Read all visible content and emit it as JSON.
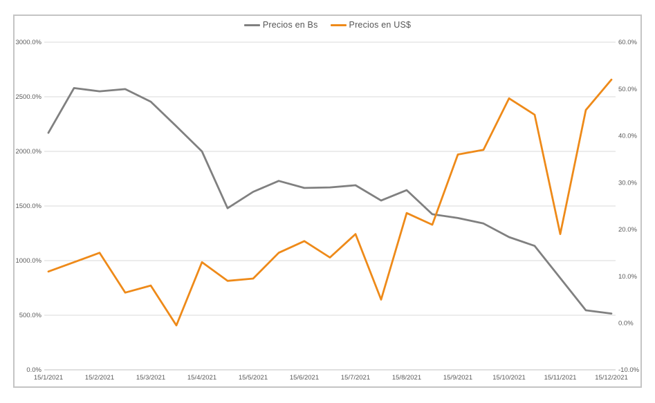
{
  "window": {
    "background": "#ffffff",
    "frame_border_color": "#c4c4c4"
  },
  "colors": {
    "series_bs": "#808080",
    "series_usd": "#ee8a19",
    "gridline": "#d9d9d9",
    "axis_line": "#bfbfbf",
    "tick_text": "#595959",
    "legend_text": "#555555"
  },
  "chart_data": {
    "type": "line",
    "title": "",
    "grid": "horizontal",
    "legend_position": "top-center",
    "n_points": 23,
    "points_frequency": "semi-monthly (ticks label every 2nd point, the 15th of each month)",
    "x_tick_labels": [
      "15/1/2021",
      "15/2/2021",
      "15/3/2021",
      "15/4/2021",
      "15/5/2021",
      "15/6/2021",
      "15/7/2021",
      "15/8/2021",
      "15/9/2021",
      "15/10/2021",
      "15/11/2021",
      "15/12/2021"
    ],
    "left_axis": {
      "min": 0,
      "max": 3000,
      "step": 500,
      "tick_labels": [
        "3000.0%",
        "2500.0%",
        "2000.0%",
        "1500.0%",
        "1000.0%",
        "500.0%",
        "0.0%"
      ]
    },
    "right_axis": {
      "min": -10,
      "max": 60,
      "step": 10,
      "tick_labels": [
        "60.0%",
        "50.0%",
        "40.0%",
        "30.0%",
        "20.0%",
        "10.0%",
        "0.0%",
        "-10.0%"
      ]
    },
    "series": [
      {
        "name": "Precios en Bs",
        "axis": "left",
        "color": "#808080",
        "values": [
          2170,
          2580,
          2550,
          2570,
          2455,
          2230,
          2000,
          1480,
          1630,
          1730,
          1665,
          1670,
          1690,
          1550,
          1645,
          1425,
          1390,
          1340,
          1215,
          1135,
          840,
          545,
          515
        ]
      },
      {
        "name": "Precios en US$",
        "axis": "right",
        "color": "#ee8a19",
        "values": [
          11,
          13,
          15,
          6.5,
          8,
          -0.5,
          13,
          9,
          9.5,
          15,
          17.5,
          14,
          19,
          5,
          23.5,
          21,
          36,
          37,
          48,
          44.5,
          19,
          45.5,
          52
        ]
      }
    ]
  }
}
